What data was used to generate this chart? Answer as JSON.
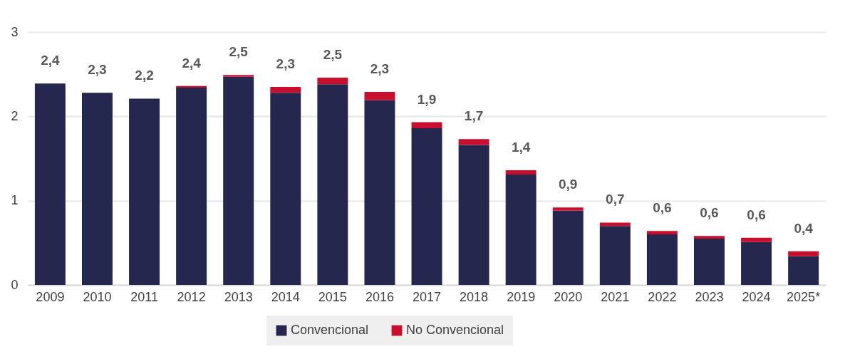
{
  "chart_data": {
    "type": "bar",
    "stacked": true,
    "categories": [
      "2009",
      "2010",
      "2011",
      "2012",
      "2013",
      "2014",
      "2015",
      "2016",
      "2017",
      "2018",
      "2019",
      "2020",
      "2021",
      "2022",
      "2023",
      "2024",
      "2025*"
    ],
    "series": [
      {
        "name": "Convencional",
        "color": "#25274f",
        "values": [
          2.39,
          2.28,
          2.21,
          2.34,
          2.47,
          2.28,
          2.38,
          2.19,
          1.86,
          1.66,
          1.31,
          0.88,
          0.7,
          0.6,
          0.55,
          0.51,
          0.34
        ]
      },
      {
        "name": "No Convencional",
        "color": "#c8102e",
        "values": [
          0,
          0,
          0,
          0.02,
          0.02,
          0.07,
          0.08,
          0.1,
          0.07,
          0.07,
          0.05,
          0.04,
          0.04,
          0.04,
          0.03,
          0.05,
          0.06
        ]
      }
    ],
    "totals": [
      "2,4",
      "2,3",
      "2,2",
      "2,4",
      "2,5",
      "2,3",
      "2,5",
      "2,3",
      "1,9",
      "1,7",
      "1,4",
      "0,9",
      "0,7",
      "0,6",
      "0,6",
      "0,6",
      "0,4"
    ],
    "ylim": [
      0,
      3
    ],
    "yticks": [
      0,
      1,
      2,
      3
    ],
    "grid": "y",
    "legend": "bottom"
  }
}
